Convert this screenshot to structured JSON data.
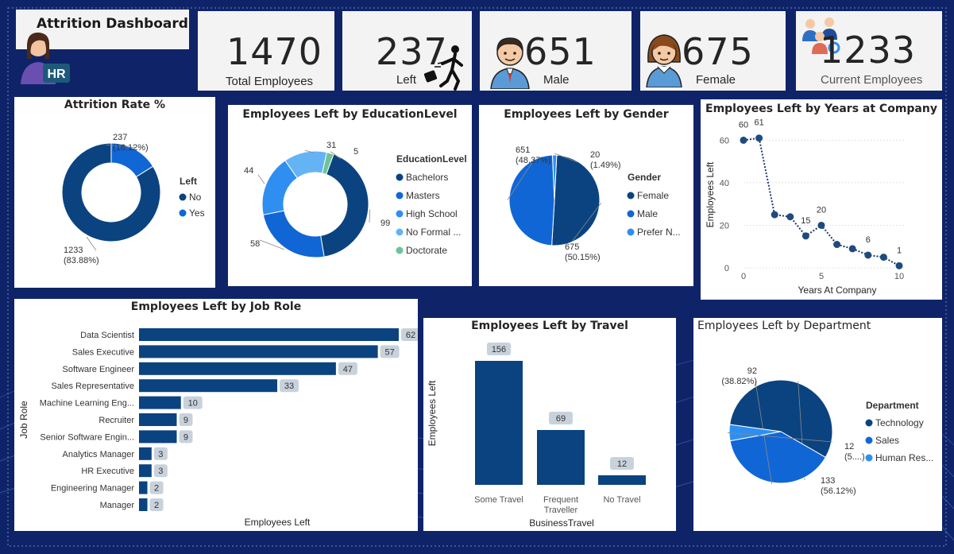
{
  "header": {
    "title": "Attrition Dashboard",
    "hr_badge": "HR"
  },
  "kpis": [
    {
      "value": "1470",
      "label": "Total Employees"
    },
    {
      "value": "237",
      "label": "Left"
    },
    {
      "value": "651",
      "label": "Male"
    },
    {
      "value": "675",
      "label": "Female"
    },
    {
      "value": "1233",
      "label": "Current Employees"
    }
  ],
  "icons": {
    "kpi_left": "walking-out-icon",
    "kpi_male": "male-avatar-icon",
    "kpi_female": "female-avatar-icon",
    "kpi_current": "team-icon",
    "hr": "hr-avatar-icon"
  },
  "colors": {
    "background": "#0f2468",
    "dark_blue": "#0b4380",
    "mid_blue": "#1166d6",
    "light_blue": "#2e8ff0",
    "pale_blue": "#64b4f5",
    "green": "#6dc39a"
  },
  "chart_data": [
    {
      "type": "pie",
      "donut": true,
      "title": "Attrition Rate %",
      "legend_title": "Left",
      "slices": [
        {
          "label": "No",
          "value": 1233,
          "label_text": "1233",
          "pct_text": "(83.88%)",
          "color": "#0b4380"
        },
        {
          "label": "Yes",
          "value": 237,
          "label_text": "237",
          "pct_text": "(16.12%)",
          "color": "#1166d6"
        }
      ],
      "legend_placement": "right"
    },
    {
      "type": "pie",
      "donut": true,
      "title": "Employees Left by EducationLevel",
      "legend_title": "EducationLevel",
      "slices": [
        {
          "label": "Bachelors",
          "value": 99,
          "label_text": "99",
          "color": "#0b4380"
        },
        {
          "label": "Masters",
          "value": 58,
          "label_text": "58",
          "color": "#1166d6"
        },
        {
          "label": "High School",
          "value": 44,
          "label_text": "44",
          "color": "#2e8ff0"
        },
        {
          "label": "No Formal ...",
          "value": 31,
          "label_text": "31",
          "color": "#64b4f5"
        },
        {
          "label": "Doctorate",
          "value": 5,
          "label_text": "5",
          "color": "#6dc39a"
        }
      ],
      "legend_placement": "right"
    },
    {
      "type": "pie",
      "donut": false,
      "title": "Employees Left by Gender",
      "legend_title": "Gender",
      "slices": [
        {
          "label": "Female",
          "value": 675,
          "label_text": "675",
          "pct_text": "(50.15%)",
          "color": "#0b4380"
        },
        {
          "label": "Male",
          "value": 651,
          "label_text": "651",
          "pct_text": "(48.37%)",
          "color": "#1166d6"
        },
        {
          "label": "Prefer N...",
          "value": 20,
          "label_text": "20",
          "pct_text": "(1.49%)",
          "color": "#2e8ff0"
        }
      ],
      "legend_placement": "right"
    },
    {
      "type": "line",
      "title": "Employees Left by Years at Company",
      "xlabel": "Years At Company",
      "ylabel": "Employees Left",
      "x": [
        0,
        1,
        2,
        3,
        4,
        5,
        6,
        7,
        8,
        9,
        10
      ],
      "y": [
        60,
        61,
        25,
        24,
        15,
        20,
        11,
        9,
        6,
        5,
        1
      ],
      "labeled_points": [
        0,
        1,
        4,
        5,
        8,
        10
      ],
      "xlim": [
        0,
        10
      ],
      "ylim": [
        0,
        65
      ],
      "x_ticks": [
        "0",
        "5",
        "10"
      ],
      "y_ticks": [
        "0",
        "20",
        "40",
        "60"
      ],
      "grid": true
    },
    {
      "type": "bar",
      "orientation": "horizontal",
      "title": "Employees Left by Job Role",
      "xlabel": "Employees Left",
      "ylabel": "Job Role",
      "categories": [
        "Data Scientist",
        "Sales Executive",
        "Software Engineer",
        "Sales Representative",
        "Machine Learning Eng...",
        "Recruiter",
        "Senior Software Engin...",
        "Analytics Manager",
        "HR Executive",
        "Engineering Manager",
        "Manager"
      ],
      "values": [
        62,
        57,
        47,
        33,
        10,
        9,
        9,
        3,
        3,
        2,
        2
      ],
      "xlim": [
        0,
        62
      ]
    },
    {
      "type": "bar",
      "orientation": "vertical",
      "title": "Employees Left by Travel",
      "xlabel": "BusinessTravel",
      "ylabel": "Employees Left",
      "categories": [
        "Some Travel",
        "Frequent Traveller",
        "No Travel"
      ],
      "values": [
        156,
        69,
        12
      ],
      "ylim": [
        0,
        156
      ]
    },
    {
      "type": "pie",
      "donut": false,
      "title": "Employees Left by Department",
      "legend_title": "Department",
      "slices": [
        {
          "label": "Technology",
          "value": 133,
          "label_text": "133",
          "pct_text": "(56.12%)",
          "color": "#0b4380"
        },
        {
          "label": "Sales",
          "value": 92,
          "label_text": "92",
          "pct_text": "(38.82%)",
          "color": "#1166d6"
        },
        {
          "label": "Human Res...",
          "value": 12,
          "label_text": "12",
          "pct_text": "(5....)",
          "color": "#2e8ff0"
        }
      ],
      "legend_placement": "right"
    }
  ]
}
